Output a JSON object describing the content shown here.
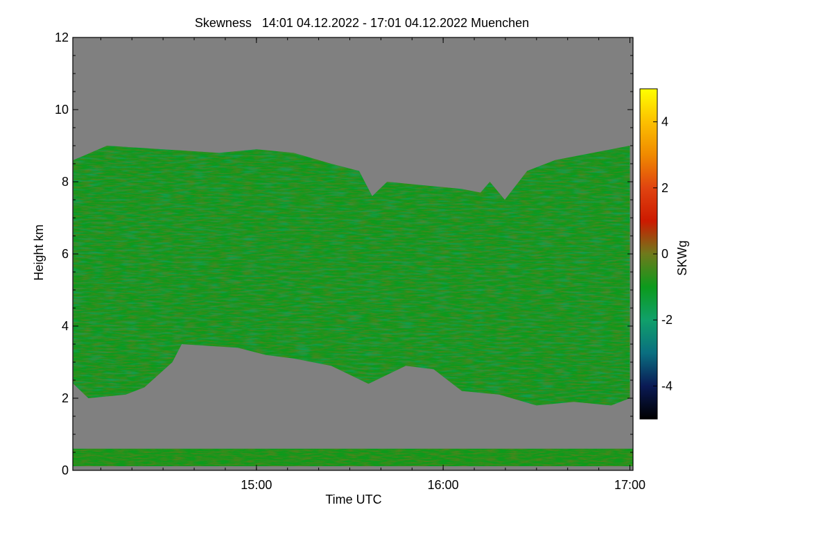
{
  "chart_data": {
    "type": "heatmap",
    "title": "Skewness   14:01 04.12.2022 - 17:01 04.12.2022 Muenchen",
    "xlabel": "Time UTC",
    "ylabel": "Height km",
    "xlim": [
      "14:01",
      "17:01"
    ],
    "x_tick_labels": [
      "15:00",
      "16:00",
      "17:00"
    ],
    "x_tick_values_hours": [
      15.0,
      16.0,
      17.0
    ],
    "x_range_hours": [
      14.0167,
      17.0167
    ],
    "ylim": [
      0,
      12
    ],
    "y_tick_values": [
      0,
      2,
      4,
      6,
      8,
      10,
      12
    ],
    "y_tick_labels": [
      "0",
      "2",
      "4",
      "6",
      "8",
      "10",
      "12"
    ],
    "colorbar": {
      "label": "SKWg",
      "range": [
        -5,
        5
      ],
      "tick_values": [
        4,
        2,
        0,
        -2,
        -4
      ],
      "tick_labels": [
        "4",
        "2",
        "0",
        "-2",
        "-4"
      ],
      "colors": [
        {
          "value": -5,
          "color": "#000000"
        },
        {
          "value": -4,
          "color": "#0a1a55"
        },
        {
          "value": -3,
          "color": "#0a6f80"
        },
        {
          "value": -2,
          "color": "#10a06a"
        },
        {
          "value": -1,
          "color": "#0c9a1c"
        },
        {
          "value": 0,
          "color": "#6f7a1c"
        },
        {
          "value": 1,
          "color": "#cc1a00"
        },
        {
          "value": 2,
          "color": "#e04410"
        },
        {
          "value": 3,
          "color": "#f08a00"
        },
        {
          "value": 4,
          "color": "#fcc000"
        },
        {
          "value": 5,
          "color": "#ffff00"
        }
      ]
    },
    "no_data_color": "#808080",
    "field_description": "Main cloud/aerosol layer between ~2 and ~9 km with skewness mostly -1 to +1.5; separate near-surface layer below ~0.6 km",
    "layers": {
      "upper_boundary_km": [
        [
          14.02,
          8.6
        ],
        [
          14.2,
          9.0
        ],
        [
          14.5,
          8.9
        ],
        [
          14.8,
          8.8
        ],
        [
          15.0,
          8.9
        ],
        [
          15.2,
          8.8
        ],
        [
          15.4,
          8.5
        ],
        [
          15.55,
          8.3
        ],
        [
          15.62,
          7.6
        ],
        [
          15.7,
          8.0
        ],
        [
          15.9,
          7.9
        ],
        [
          16.1,
          7.8
        ],
        [
          16.2,
          7.7
        ],
        [
          16.25,
          8.0
        ],
        [
          16.33,
          7.5
        ],
        [
          16.45,
          8.3
        ],
        [
          16.6,
          8.6
        ],
        [
          16.8,
          8.8
        ],
        [
          17.0,
          9.0
        ]
      ],
      "lower_boundary_km": [
        [
          14.02,
          2.4
        ],
        [
          14.1,
          2.0
        ],
        [
          14.3,
          2.1
        ],
        [
          14.4,
          2.3
        ],
        [
          14.55,
          3.0
        ],
        [
          14.6,
          3.5
        ],
        [
          14.9,
          3.4
        ],
        [
          15.05,
          3.2
        ],
        [
          15.2,
          3.1
        ],
        [
          15.4,
          2.9
        ],
        [
          15.6,
          2.4
        ],
        [
          15.8,
          2.9
        ],
        [
          15.95,
          2.8
        ],
        [
          16.1,
          2.2
        ],
        [
          16.3,
          2.1
        ],
        [
          16.5,
          1.8
        ],
        [
          16.7,
          1.9
        ],
        [
          16.9,
          1.8
        ],
        [
          17.0,
          2.0
        ]
      ],
      "surface_layer_km": [
        0.0,
        0.6
      ]
    }
  }
}
